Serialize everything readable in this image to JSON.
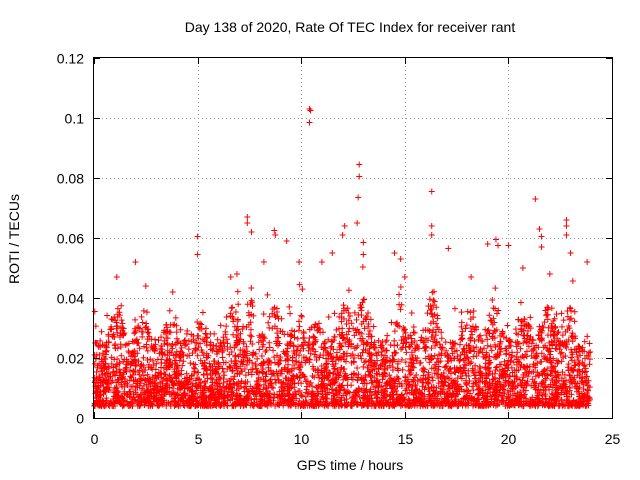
{
  "chart_data": {
    "type": "scatter",
    "title": "Day 138 of 2020, Rate Of TEC Index for receiver rant",
    "xlabel": "GPS time / hours",
    "ylabel": "ROTI / TECUs",
    "xlim": [
      0,
      25
    ],
    "ylim": [
      0,
      0.12
    ],
    "xticks": [
      0,
      5,
      10,
      15,
      20,
      25
    ],
    "yticks": [
      0,
      0.02,
      0.04,
      0.06,
      0.08,
      0.1,
      0.12
    ],
    "xtick_labels": [
      "0",
      "5",
      "10",
      "15",
      "20",
      "25"
    ],
    "ytick_labels": [
      "0",
      "0.02",
      "0.04",
      "0.06",
      "0.08",
      "0.1",
      "0.12"
    ],
    "grid": true,
    "marker": "+",
    "color": "#ff0000",
    "series": [
      {
        "name": "ROTI",
        "outliers": [
          {
            "x": 10.4,
            "y": 0.103
          },
          {
            "x": 10.45,
            "y": 0.1025
          },
          {
            "x": 10.4,
            "y": 0.0985
          },
          {
            "x": 12.8,
            "y": 0.0845
          },
          {
            "x": 12.8,
            "y": 0.0805
          },
          {
            "x": 12.75,
            "y": 0.0735
          },
          {
            "x": 16.3,
            "y": 0.0755
          },
          {
            "x": 21.3,
            "y": 0.073
          },
          {
            "x": 7.4,
            "y": 0.067
          },
          {
            "x": 7.4,
            "y": 0.065
          },
          {
            "x": 7.6,
            "y": 0.062
          },
          {
            "x": 8.7,
            "y": 0.0625
          },
          {
            "x": 8.75,
            "y": 0.061
          },
          {
            "x": 12.1,
            "y": 0.064
          },
          {
            "x": 12.0,
            "y": 0.061
          },
          {
            "x": 12.7,
            "y": 0.065
          },
          {
            "x": 16.3,
            "y": 0.064
          },
          {
            "x": 16.3,
            "y": 0.061
          },
          {
            "x": 22.8,
            "y": 0.066
          },
          {
            "x": 22.8,
            "y": 0.064
          },
          {
            "x": 22.8,
            "y": 0.061
          },
          {
            "x": 5.0,
            "y": 0.0605
          },
          {
            "x": 5.0,
            "y": 0.0545
          },
          {
            "x": 19.4,
            "y": 0.0595
          },
          {
            "x": 19.5,
            "y": 0.0575
          },
          {
            "x": 21.5,
            "y": 0.063
          },
          {
            "x": 21.6,
            "y": 0.0605
          },
          {
            "x": 21.6,
            "y": 0.057
          },
          {
            "x": 2.0,
            "y": 0.052
          },
          {
            "x": 13.0,
            "y": 0.0585
          },
          {
            "x": 13.0,
            "y": 0.0545
          },
          {
            "x": 14.5,
            "y": 0.055
          },
          {
            "x": 14.8,
            "y": 0.053
          },
          {
            "x": 17.1,
            "y": 0.0565
          },
          {
            "x": 19.0,
            "y": 0.058
          },
          {
            "x": 20.0,
            "y": 0.0575
          },
          {
            "x": 23.0,
            "y": 0.055
          },
          {
            "x": 23.8,
            "y": 0.052
          },
          {
            "x": 9.9,
            "y": 0.052
          },
          {
            "x": 9.3,
            "y": 0.059
          },
          {
            "x": 11.0,
            "y": 0.052
          },
          {
            "x": 11.5,
            "y": 0.055
          },
          {
            "x": 1.1,
            "y": 0.047
          },
          {
            "x": 2.5,
            "y": 0.044
          },
          {
            "x": 6.6,
            "y": 0.047
          },
          {
            "x": 8.2,
            "y": 0.052
          },
          {
            "x": 15.0,
            "y": 0.047
          },
          {
            "x": 18.2,
            "y": 0.047
          },
          {
            "x": 20.7,
            "y": 0.05
          },
          {
            "x": 22.0,
            "y": 0.048
          },
          {
            "x": 3.8,
            "y": 0.042
          },
          {
            "x": 6.9,
            "y": 0.048
          }
        ]
      }
    ],
    "seed": 138
  }
}
